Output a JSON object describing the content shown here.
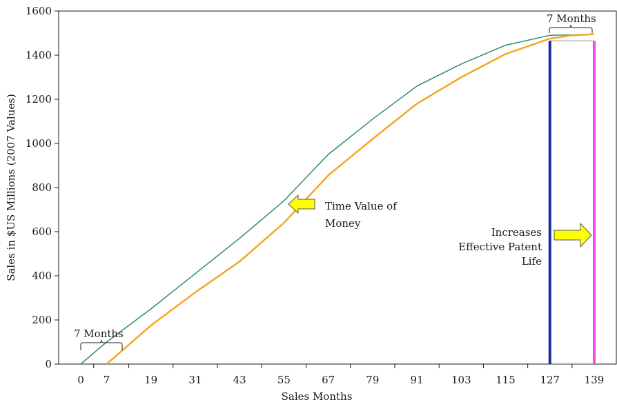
{
  "chart_data": {
    "type": "line",
    "xlabel": "Sales Months",
    "ylabel": "Sales  in $US Millions (2007 Values)",
    "x_ticks": [
      "0",
      "7",
      "19",
      "31",
      "43",
      "55",
      "67",
      "79",
      "91",
      "103",
      "115",
      "127",
      "139"
    ],
    "y_ticks": [
      "0",
      "200",
      "400",
      "600",
      "800",
      "1000",
      "1200",
      "1400",
      "1600"
    ],
    "xlim": [
      0,
      139
    ],
    "ylim": [
      0,
      1600
    ],
    "grid": false,
    "legend": "none",
    "series": [
      {
        "color": "#2e8b6e",
        "x": [
          0,
          7,
          19,
          31,
          43,
          55,
          67,
          79,
          91,
          103,
          115,
          127,
          132,
          139
        ],
        "y": [
          0,
          100,
          250,
          410,
          570,
          740,
          950,
          1110,
          1260,
          1360,
          1445,
          1490,
          1492,
          1495
        ]
      },
      {
        "color": "#f5a623",
        "x": [
          7,
          19,
          31,
          43,
          55,
          67,
          79,
          91,
          103,
          115,
          127,
          133,
          139
        ],
        "y": [
          0,
          175,
          325,
          465,
          640,
          855,
          1020,
          1180,
          1300,
          1405,
          1475,
          1490,
          1495
        ]
      }
    ],
    "vertical_markers": [
      {
        "x": 127,
        "y_top": 1465,
        "color": "#1a2aa0"
      },
      {
        "x": 139,
        "y_top": 1465,
        "color": "#ff44ee"
      }
    ],
    "annotations": {
      "brace_bottom": "7 Months",
      "brace_top": "7 Months",
      "time_value_line1": "Time Value of",
      "time_value_line2": "Money",
      "patent_line1": "Increases",
      "patent_line2": "Effective Patent",
      "patent_line3": "Life"
    },
    "arrow_colors": {
      "fill": "#ffff00",
      "stroke": "#555555"
    }
  }
}
